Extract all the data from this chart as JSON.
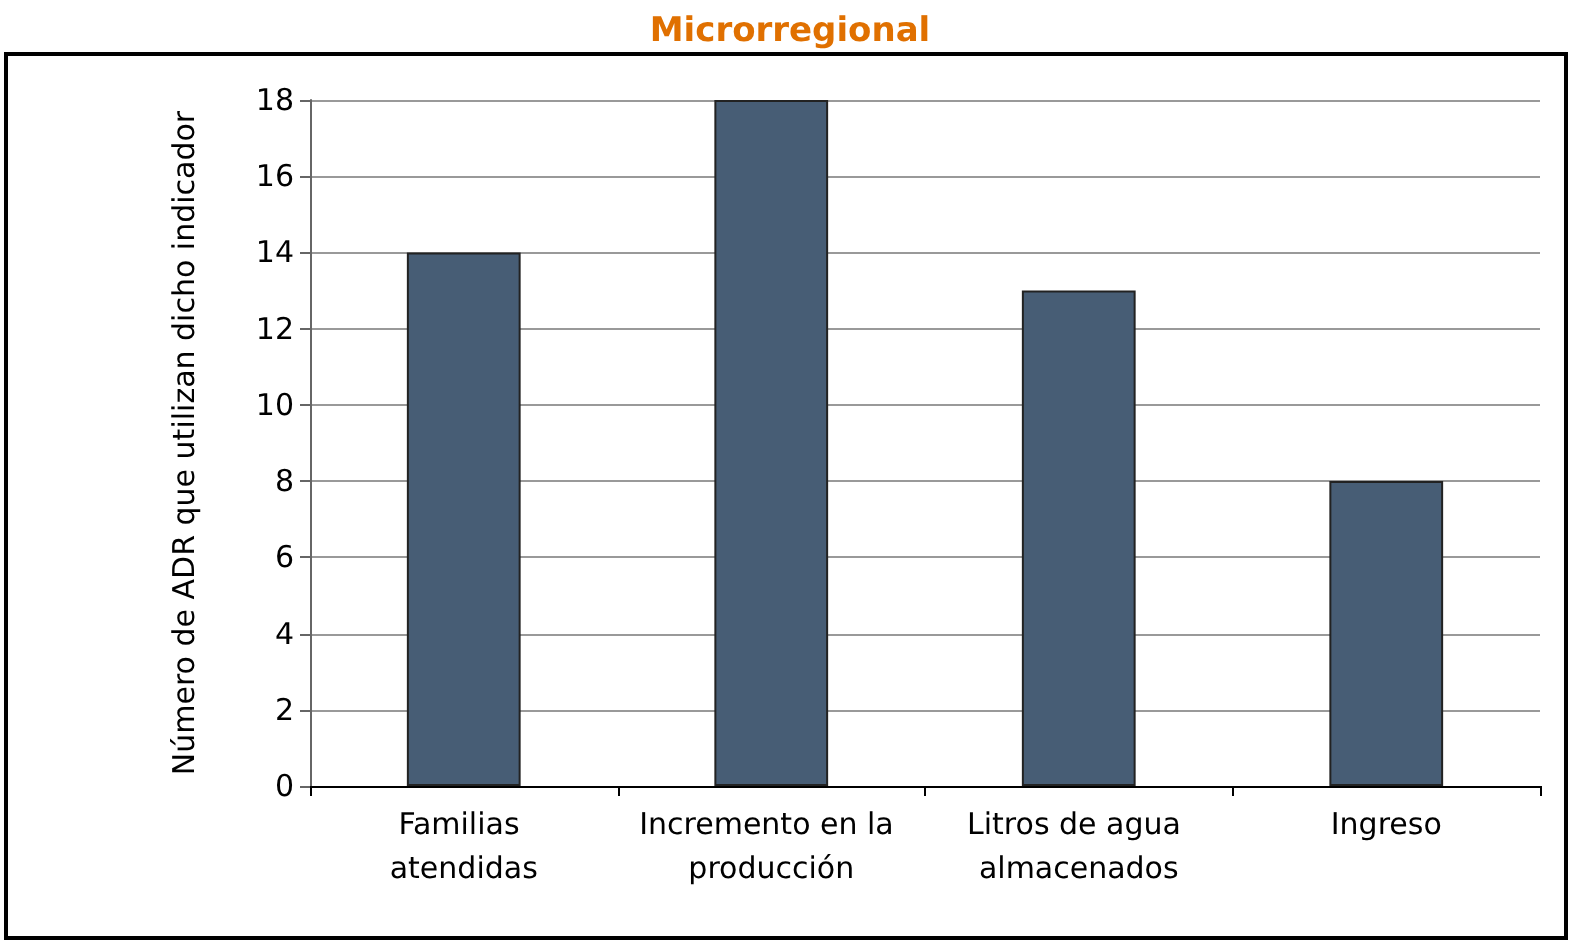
{
  "chart_data": {
    "type": "bar",
    "title": "Microrregional",
    "ylabel": "Número de ADR que utilizan dicho indicador",
    "categories": [
      "Familias atendidas",
      "Incremento en la producción",
      "Litros de agua almacenados",
      "Ingreso"
    ],
    "values": [
      14,
      18,
      13,
      8
    ],
    "color": "#475d75",
    "ylim": [
      0,
      18
    ],
    "yticks": [
      0,
      2,
      4,
      6,
      8,
      10,
      12,
      14,
      16,
      18
    ],
    "grid": "y"
  }
}
